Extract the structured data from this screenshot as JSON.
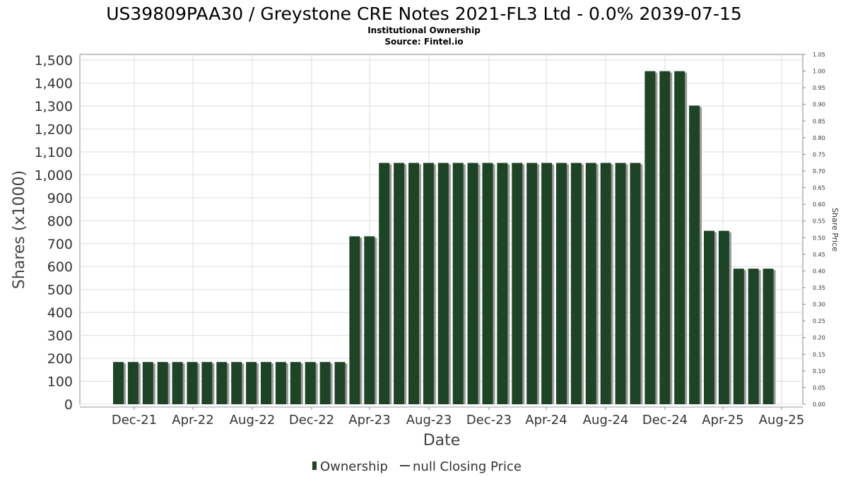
{
  "chart_data": {
    "type": "bar",
    "title": "US39809PAA30 / Greystone CRE Notes 2021-FL3 Ltd - 0.0% 2039-07-15",
    "subtitle": "Institutional Ownership",
    "source": "Source: Fintel.io",
    "xlabel": "Date",
    "ylabel": "Shares (x1000)",
    "y2label": "Share Price",
    "ylim": [
      0,
      1525
    ],
    "y2lim": [
      0,
      1.05
    ],
    "yticks": [
      "0",
      "100",
      "200",
      "300",
      "400",
      "500",
      "600",
      "700",
      "800",
      "900",
      "1,000",
      "1,100",
      "1,200",
      "1,300",
      "1,400",
      "1,500"
    ],
    "y2ticks": [
      "0.00",
      "0.05",
      "0.10",
      "0.15",
      "0.20",
      "0.25",
      "0.30",
      "0.35",
      "0.40",
      "0.45",
      "0.50",
      "0.55",
      "0.60",
      "0.65",
      "0.70",
      "0.75",
      "0.80",
      "0.85",
      "0.90",
      "0.95",
      "1.00",
      "1.05"
    ],
    "xticks": [
      "Dec-21",
      "Apr-22",
      "Aug-22",
      "Dec-22",
      "Apr-23",
      "Aug-23",
      "Dec-23",
      "Apr-24",
      "Aug-24",
      "Dec-24",
      "Apr-25",
      "Aug-25"
    ],
    "series": [
      {
        "name": "Ownership",
        "color": "#1e4426",
        "values": [
          184,
          184,
          184,
          184,
          184,
          184,
          184,
          184,
          184,
          184,
          184,
          184,
          184,
          184,
          184,
          184,
          732,
          732,
          1052,
          1052,
          1052,
          1052,
          1052,
          1052,
          1052,
          1052,
          1052,
          1052,
          1052,
          1052,
          1052,
          1052,
          1052,
          1052,
          1052,
          1052,
          1452,
          1452,
          1452,
          1302,
          756,
          756,
          591,
          591,
          591
        ]
      }
    ],
    "legend": [
      {
        "label": "Ownership"
      },
      {
        "label": "null Closing Price"
      }
    ],
    "legend_position": "bottom",
    "grid": true
  }
}
